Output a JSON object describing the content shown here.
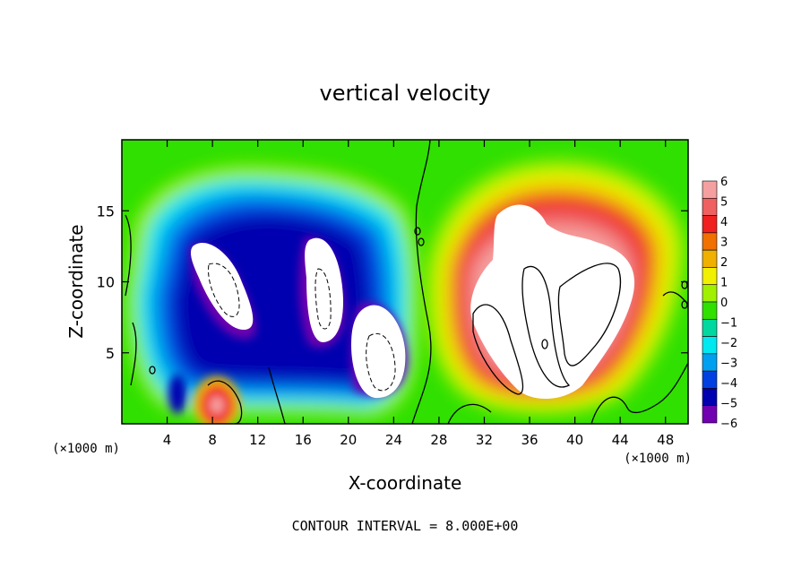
{
  "chart_data": {
    "type": "heatmap",
    "title": "vertical velocity",
    "xlabel": "X-coordinate",
    "ylabel": "Z-coordinate",
    "x_unit": "(×1000 m)",
    "y_unit": "(×1000 m)",
    "xlim": [
      0,
      50
    ],
    "ylim": [
      0,
      20
    ],
    "x_ticks": [
      4,
      8,
      12,
      16,
      20,
      24,
      28,
      32,
      36,
      40,
      44,
      48
    ],
    "y_ticks": [
      5,
      10,
      15
    ],
    "footer": "CONTOUR INTERVAL = 8.000E+00",
    "colorbar": {
      "levels": [
        6,
        5,
        4,
        3,
        2,
        1,
        0,
        -1,
        -2,
        -3,
        -4,
        -5,
        -6
      ],
      "colors": [
        "#f5a0a0",
        "#f06060",
        "#f02020",
        "#f07000",
        "#f0b000",
        "#f0f000",
        "#a0f000",
        "#30e000",
        "#00d8a0",
        "#00e8f0",
        "#00a0f0",
        "#0040e0",
        "#0000b0",
        "#7000b0"
      ]
    },
    "features": [
      {
        "kind": "downdraft",
        "x": 8,
        "z": 9.5,
        "value": -8
      },
      {
        "kind": "downdraft",
        "x": 15.5,
        "z": 10,
        "value": -8
      },
      {
        "kind": "downdraft",
        "x": 22,
        "z": 5,
        "value": -8
      },
      {
        "kind": "updraft",
        "x": 37,
        "z": 9,
        "value": 8
      },
      {
        "kind": "updraft",
        "x": 8.5,
        "z": 1.5,
        "value": 5
      }
    ]
  }
}
